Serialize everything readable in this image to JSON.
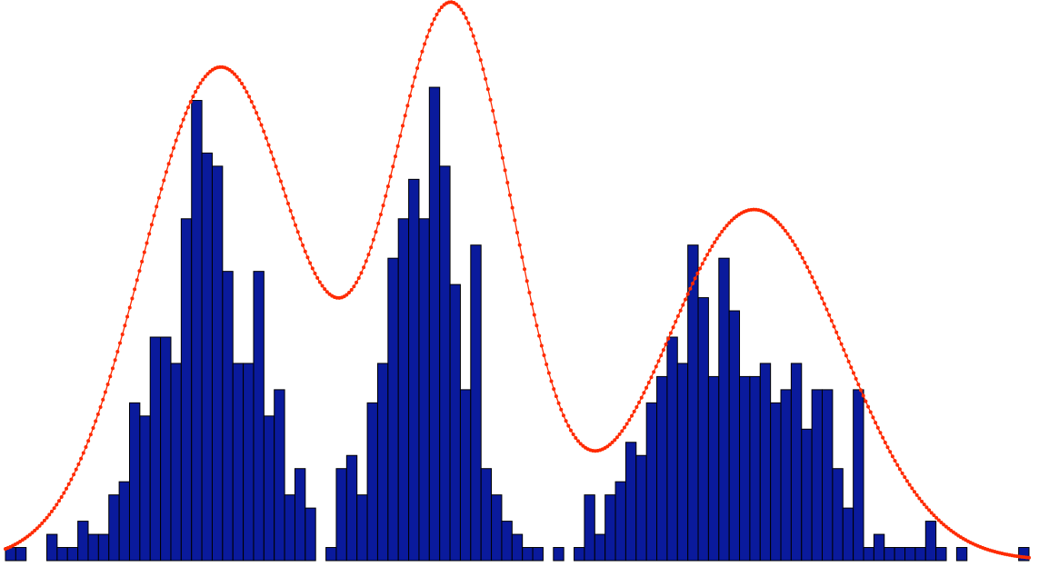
{
  "chart_data": {
    "type": "bar",
    "title": "",
    "xlabel": "",
    "ylabel": "",
    "grid": false,
    "ylim": [
      0,
      42.5
    ],
    "colors": {
      "bar_fill": "#0a1a9c",
      "bar_stroke": "#000000",
      "fit_line": "#ff2a00"
    },
    "histogram": {
      "bin_count": 99,
      "counts": [
        1,
        1,
        0,
        0,
        2,
        1,
        1,
        3,
        2,
        2,
        5,
        6,
        12,
        11,
        17,
        17,
        15,
        26,
        35,
        31,
        30,
        22,
        15,
        15,
        22,
        11,
        13,
        5,
        7,
        4,
        0,
        1,
        7,
        8,
        5,
        12,
        15,
        23,
        26,
        29,
        26,
        36,
        30,
        21,
        13,
        24,
        7,
        5,
        3,
        2,
        1,
        1,
        0,
        1,
        0,
        1,
        5,
        2,
        5,
        6,
        9,
        8,
        12,
        14,
        17,
        15,
        24,
        20,
        14,
        23,
        19,
        14,
        14,
        15,
        12,
        13,
        15,
        10,
        13,
        13,
        7,
        4,
        13,
        1,
        2,
        1,
        1,
        1,
        1,
        3,
        1,
        0,
        1,
        0,
        0,
        0,
        0,
        0,
        1
      ]
    },
    "series": [
      {
        "type": "line",
        "markers": true,
        "curve": "gaussian-mixture",
        "components": [
          {
            "center_bin": 20.8,
            "sigma_bins": 7.6,
            "peak": 37.5
          },
          {
            "center_bin": 43.2,
            "sigma_bins": 6.0,
            "peak": 41.9
          },
          {
            "center_bin": 72.4,
            "sigma_bins": 8.6,
            "peak": 26.7
          }
        ]
      }
    ]
  }
}
